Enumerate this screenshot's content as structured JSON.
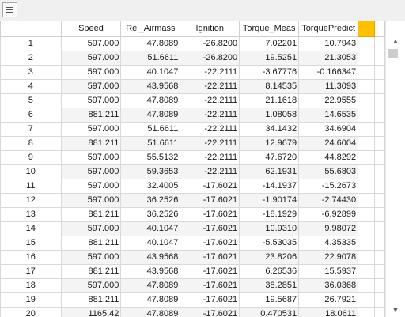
{
  "toolbar": {
    "menu_icon": "hamburger-menu-icon"
  },
  "table": {
    "columns": [
      "Speed",
      "Rel_Airmass",
      "Ignition",
      "Torque_Meas",
      "TorquePredict"
    ],
    "selected_column_color": "#ffc000",
    "rows": [
      [
        "1",
        "597.000",
        "47.8089",
        "-26.8200",
        "7.02201",
        "10.7943"
      ],
      [
        "2",
        "597.000",
        "51.6611",
        "-26.8200",
        "19.5251",
        "21.3053"
      ],
      [
        "3",
        "597.000",
        "40.1047",
        "-22.2111",
        "-3.67776",
        "-0.166347"
      ],
      [
        "4",
        "597.000",
        "43.9568",
        "-22.2111",
        "8.14535",
        "11.3093"
      ],
      [
        "5",
        "597.000",
        "47.8089",
        "-22.2111",
        "21.1618",
        "22.9555"
      ],
      [
        "6",
        "881.211",
        "47.8089",
        "-22.2111",
        "1.08058",
        "14.6535"
      ],
      [
        "7",
        "597.000",
        "51.6611",
        "-22.2111",
        "34.1432",
        "34.6904"
      ],
      [
        "8",
        "881.211",
        "51.6611",
        "-22.2111",
        "12.9679",
        "24.6004"
      ],
      [
        "9",
        "597.000",
        "55.5132",
        "-22.2111",
        "47.6720",
        "44.8292"
      ],
      [
        "10",
        "597.000",
        "59.3653",
        "-22.2111",
        "62.1931",
        "55.6803"
      ],
      [
        "11",
        "597.000",
        "32.4005",
        "-17.6021",
        "-14.1937",
        "-15.2673"
      ],
      [
        "12",
        "597.000",
        "36.2526",
        "-17.6021",
        "-1.90174",
        "-2.74430"
      ],
      [
        "13",
        "881.211",
        "36.2526",
        "-17.6021",
        "-18.1929",
        "-6.92899"
      ],
      [
        "14",
        "597.000",
        "40.1047",
        "-17.6021",
        "10.9310",
        "9.98072"
      ],
      [
        "15",
        "881.211",
        "40.1047",
        "-17.6021",
        "-5.53035",
        "4.35335"
      ],
      [
        "16",
        "597.000",
        "43.9568",
        "-17.6021",
        "23.8206",
        "22.9078"
      ],
      [
        "17",
        "881.211",
        "43.9568",
        "-17.6021",
        "6.26536",
        "15.5937"
      ],
      [
        "18",
        "597.000",
        "47.8089",
        "-17.6021",
        "38.2851",
        "36.0368"
      ],
      [
        "19",
        "881.211",
        "47.8089",
        "-17.6021",
        "19.5687",
        "26.7921"
      ],
      [
        "20",
        "1165.42",
        "47.8089",
        "-17.6021",
        "0.470531",
        "18.0611"
      ]
    ]
  },
  "scrollbar": {
    "up_icon": "▲",
    "down_icon": "▼"
  }
}
